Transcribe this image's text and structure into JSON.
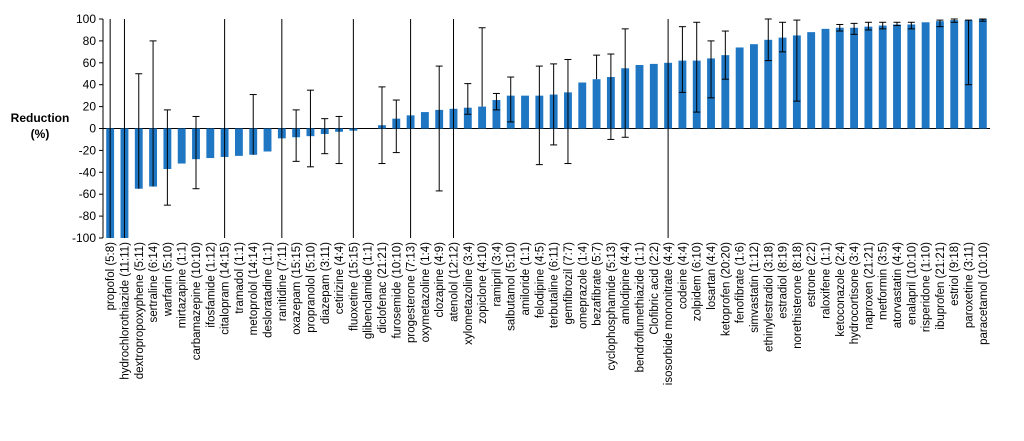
{
  "chart_data": {
    "type": "bar",
    "title": "",
    "xlabel": "",
    "ylabel": "Reduction",
    "ylabel_unit": "(%)",
    "ylim": [
      -100,
      100
    ],
    "yticks": [
      100,
      80,
      60,
      40,
      20,
      0,
      -20,
      -40,
      -60,
      -80,
      -100
    ],
    "grid": false,
    "legend": "none",
    "bar_color": "#1f77c4",
    "categories": [
      "propofol (5:8)",
      "hydrochlorothiazide (11:11)",
      "dextropropoxyphene (5:11)",
      "sertraline (6:14)",
      "warfarin (5:10)",
      "mirtazapine (1:1)",
      "carbamazepine (10:10)",
      "ifosfamide (1:12)",
      "citalopram (14:15)",
      "tramadol (1:1)",
      "metoprolol (14:14)",
      "desloratadine (1:1)",
      "ranitidine (7:11)",
      "oxazepam (15:15)",
      "propranolol (5:10)",
      "diazepam (3:11)",
      "cetirizine (4:4)",
      "fluoxetine (15:15)",
      "glibenclamide (1:1)",
      "diclofenac (21:21)",
      "furosemide (10:10)",
      "progesterone (7:13)",
      "oxymetazoline (1:4)",
      "clozapine (4:9)",
      "atenolol (12:12)",
      "xylometazoline (3:4)",
      "zopiclone (4:10)",
      "ramipril (3:4)",
      "salbutamol (5:10)",
      "amiloride (1:1)",
      "felodipine (4:5)",
      "terbutaline (6:11)",
      "gemfibrozil (7:7)",
      "omeprazole (1:4)",
      "bezafibrate (5:7)",
      "cyclophosphamide (5:13)",
      "amlodipine (4:4)",
      "bendroflumethiazide (1:1)",
      "Clofibric acid (2:2)",
      "isosorbide mononitrate (4:4)",
      "codeine (4:4)",
      "zolpidem (6:10)",
      "losartan (4:4)",
      "ketoprofen (20:20)",
      "fenofibrate (1:6)",
      "simvastatin (1:12)",
      "ethinylestradiol (3:18)",
      "estradiol (8:19)",
      "norethisterone (8:18)",
      "estrone (2:2)",
      "raloxifene (1:1)",
      "ketoconazole (2:4)",
      "hydrocortisone (3:4)",
      "naproxen (21:21)",
      "metformin (3:5)",
      "atorvastatin (4:4)",
      "enalapril (10:10)",
      "risperidone (1:10)",
      "ibuprofen (21:21)",
      "estriol (9:18)",
      "paroxetine (3:11)",
      "paracetamol (10:10)"
    ],
    "values": [
      -100,
      -100,
      -55,
      -53,
      -37,
      -32,
      -28,
      -27,
      -26,
      -25,
      -24,
      -21,
      -9,
      -8,
      -7,
      -5,
      -3,
      -2,
      0,
      3,
      9,
      12,
      15,
      17,
      18,
      19,
      20,
      26,
      30,
      30,
      30,
      31,
      33,
      42,
      45,
      47,
      55,
      58,
      59,
      60,
      62,
      62,
      64,
      67,
      74,
      77,
      81,
      83,
      85,
      88,
      91,
      92,
      92,
      93,
      94,
      95,
      95,
      97,
      98,
      99,
      99,
      100
    ],
    "error_low": [
      null,
      null,
      null,
      null,
      -70,
      null,
      -55,
      null,
      null,
      null,
      null,
      null,
      null,
      -30,
      -35,
      -23,
      -32,
      null,
      null,
      -32,
      -22,
      null,
      null,
      -57,
      null,
      13,
      null,
      17,
      6,
      null,
      -33,
      -15,
      -32,
      null,
      null,
      -10,
      -8,
      null,
      null,
      null,
      33,
      15,
      28,
      45,
      null,
      null,
      62,
      70,
      25,
      null,
      null,
      89,
      86,
      90,
      91,
      94,
      91,
      null,
      93,
      97,
      40,
      98
    ],
    "error_high": [
      63,
      null,
      50,
      80,
      17,
      null,
      11,
      null,
      null,
      null,
      31,
      null,
      null,
      17,
      35,
      9,
      11,
      null,
      null,
      38,
      26,
      null,
      null,
      57,
      null,
      41,
      92,
      32,
      47,
      null,
      57,
      59,
      63,
      null,
      67,
      68,
      91,
      null,
      null,
      null,
      93,
      97,
      80,
      89,
      null,
      null,
      100,
      97,
      99,
      null,
      null,
      95,
      96,
      97,
      97,
      97,
      97,
      null,
      99,
      100,
      99,
      100
    ],
    "full_lines": [
      "propofol (5:8)",
      "hydrochlorothiazide (11:11)",
      "citalopram (14:15)",
      "ranitidine (7:11)",
      "fluoxetine (15:15)",
      "progesterone (7:13)",
      "atenolol (12:12)",
      "isosorbide mononitrate (4:4)"
    ]
  }
}
